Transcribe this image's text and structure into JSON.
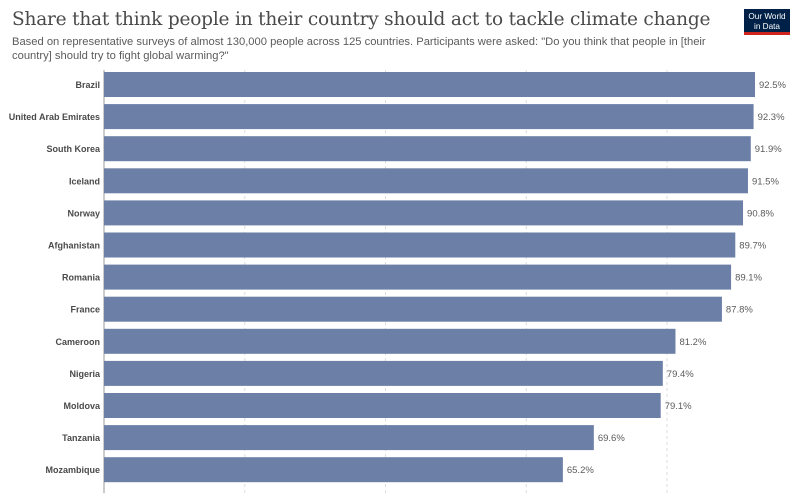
{
  "header": {
    "title": "Share that think people in their country should act to tackle climate change",
    "subtitle": "Based on representative surveys of almost 130,000 people across 125 countries. Participants were asked: \"Do you think that people in [their country] should try to fight global warming?\""
  },
  "logo": {
    "line1": "Our World",
    "line2": "in Data",
    "bg_color": "#002147",
    "accent_color": "#ce261e"
  },
  "chart_data": {
    "type": "bar",
    "orientation": "horizontal",
    "title": "Share that think people in their country should act to tackle climate change",
    "xlabel": "",
    "ylabel": "",
    "xlim": [
      0,
      100
    ],
    "grid": "vertical dashed",
    "bar_color": "#6b7fa7",
    "categories": [
      "Brazil",
      "United Arab Emirates",
      "South Korea",
      "Iceland",
      "Norway",
      "Afghanistan",
      "Romania",
      "France",
      "Cameroon",
      "Nigeria",
      "Moldova",
      "Tanzania",
      "Mozambique"
    ],
    "values": [
      92.5,
      92.3,
      91.9,
      91.5,
      90.8,
      89.7,
      89.1,
      87.8,
      81.2,
      79.4,
      79.1,
      69.6,
      65.2
    ],
    "value_labels": [
      "92.5%",
      "92.3%",
      "91.9%",
      "91.5%",
      "90.8%",
      "89.7%",
      "89.1%",
      "87.8%",
      "81.2%",
      "79.4%",
      "79.1%",
      "69.6%",
      "65.2%"
    ]
  }
}
